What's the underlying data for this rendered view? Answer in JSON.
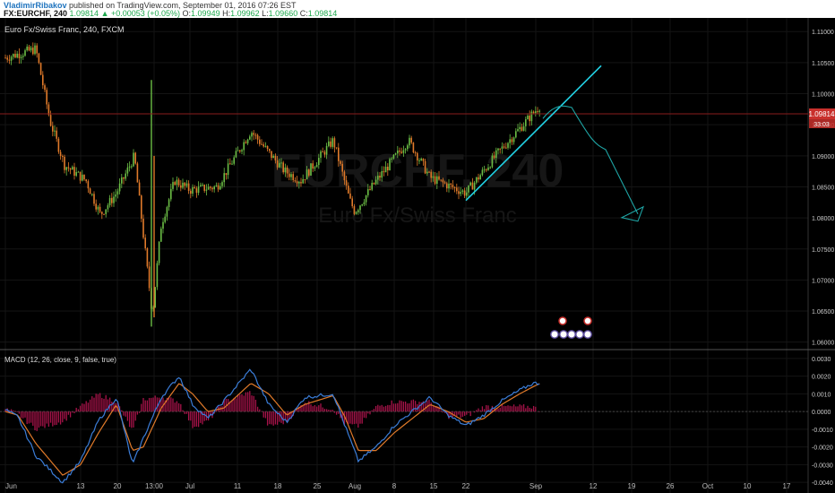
{
  "header": {
    "author": "VladimirRibakov",
    "published": " published on TradingView.com, September 01, 2016 07:26 EST",
    "symbol": "FX:EURCHF, 240",
    "open_label": " O:",
    "open": "1.09949",
    "high_label": " H:",
    "high": "1.09962",
    "low_label": " L:",
    "low": "1.09660",
    "close_label": " C:",
    "close": "1.09814",
    "change": "1.09814 ▲ +0.00053 (+0.05%)"
  },
  "main_pane": {
    "legend": "Euro Fx/Swiss Franc, 240, FXCM",
    "watermark_symbol": "EURCHF, 240",
    "watermark_name": "Euro Fx/Swiss Franc",
    "last_price": "1.09814",
    "countdown": "33:03"
  },
  "macd_pane": {
    "legend": "MACD (12, 26, close, 9, false, true)"
  },
  "colors": {
    "up": "#6bbd45",
    "down": "#e07a2a",
    "trendline": "#22d3e6",
    "forecast": "#1fa5a5",
    "macd": "#3b7dd8",
    "signal": "#e07a2a",
    "hist": "#a8134a",
    "price_badge": "#c9302c"
  },
  "chart_data": {
    "type": "candlestick",
    "instrument": "FX:EURCHF",
    "timeframe": "240",
    "ylim": [
      1.0588,
      1.1122
    ],
    "y_ticks": [
      "1.11000",
      "1.10500",
      "1.10000",
      "1.09500",
      "1.09000",
      "1.08500",
      "1.08000",
      "1.07500",
      "1.07000",
      "1.06500",
      "1.06000"
    ],
    "x_ticks": [
      "Jun",
      "13",
      "20",
      "13:00",
      "Jul",
      "11",
      "18",
      "25",
      "Aug",
      "8",
      "15",
      "22",
      "Sep",
      "12",
      "19",
      "26",
      "Oct",
      "10",
      "17"
    ],
    "close_path": [
      {
        "x": "Jun",
        "y": 1.1058
      },
      {
        "x": "~Jun 6",
        "y": 1.1072
      },
      {
        "x": "~Jun 8",
        "y": 1.0955
      },
      {
        "x": "~Jun 10",
        "y": 1.0885
      },
      {
        "x": "~Jun 13",
        "y": 1.086
      },
      {
        "x": "~Jun 16",
        "y": 1.0805
      },
      {
        "x": "~Jun 20",
        "y": 1.084
      },
      {
        "x": "~Jun 23",
        "y": 1.09
      },
      {
        "x": "13:00",
        "y": 1.0645
      },
      {
        "x": "~Jun 27",
        "y": 1.079
      },
      {
        "x": "~Jun 29",
        "y": 1.086
      },
      {
        "x": "Jul",
        "y": 1.0845
      },
      {
        "x": "~Jul 7",
        "y": 1.085
      },
      {
        "x": "11",
        "y": 1.094
      },
      {
        "x": "~Jul 14",
        "y": 1.0905
      },
      {
        "x": "18",
        "y": 1.0875
      },
      {
        "x": "~Jul 21",
        "y": 1.086
      },
      {
        "x": "25",
        "y": 1.0925
      },
      {
        "x": "~Jul 29",
        "y": 1.083
      },
      {
        "x": "Aug",
        "y": 1.081
      },
      {
        "x": "8",
        "y": 1.086
      },
      {
        "x": "~Aug 10",
        "y": 1.0925
      },
      {
        "x": "15",
        "y": 1.0865
      },
      {
        "x": "22",
        "y": 1.084
      },
      {
        "x": "~Aug 26",
        "y": 1.0905
      },
      {
        "x": "Sep",
        "y": 1.09814
      }
    ],
    "drawings": {
      "trendline": {
        "from": {
          "x": "~Aug 19",
          "y": 1.0828
        },
        "to": {
          "x": "~Sep 12",
          "y": 1.1045
        }
      },
      "forecast_path": [
        {
          "x": "Sep",
          "y": 1.096
        },
        {
          "x": "~Sep 6",
          "y": 1.0978
        },
        {
          "x": "~Sep 12",
          "y": 1.091
        },
        {
          "x": "~Sep 19",
          "y": 1.0812
        }
      ]
    },
    "macd": {
      "params": "12, 26, close, 9, false, true",
      "ylim": [
        -0.0046,
        0.0034
      ],
      "y_ticks": [
        "0.0030",
        "0.0020",
        "0.0010",
        "0.0000",
        "-0.0010",
        "-0.0020",
        "-0.0030",
        "-0.0040"
      ],
      "macd_path": [
        0.0001,
        -0.0003,
        -0.0025,
        -0.004,
        -0.0028,
        -0.0005,
        0.0008,
        -0.003,
        -0.0015,
        0.0008,
        0.002,
        0.0004,
        -0.0004,
        0.0006,
        0.0024,
        0.0004,
        -0.0006,
        0.0008,
        0.001,
        -0.0008,
        -0.0028,
        -0.002,
        -0.0008,
        0.0008,
        -0.0002,
        -0.0008,
        -0.0002,
        0.0006,
        0.0012,
        0.0016,
        0.0016
      ],
      "signal_path": [
        0.0,
        -0.0002,
        -0.0018,
        -0.0036,
        -0.003,
        -0.0012,
        0.0004,
        -0.0022,
        -0.002,
        0.0002,
        0.0016,
        0.001,
        0.0,
        0.0002,
        0.0016,
        0.001,
        -0.0002,
        0.0004,
        0.0009,
        -0.0003,
        -0.0022,
        -0.0022,
        -0.0012,
        0.0004,
        0.0,
        -0.0006,
        -0.0004,
        0.0004,
        0.001,
        0.0014,
        0.0016
      ]
    }
  }
}
